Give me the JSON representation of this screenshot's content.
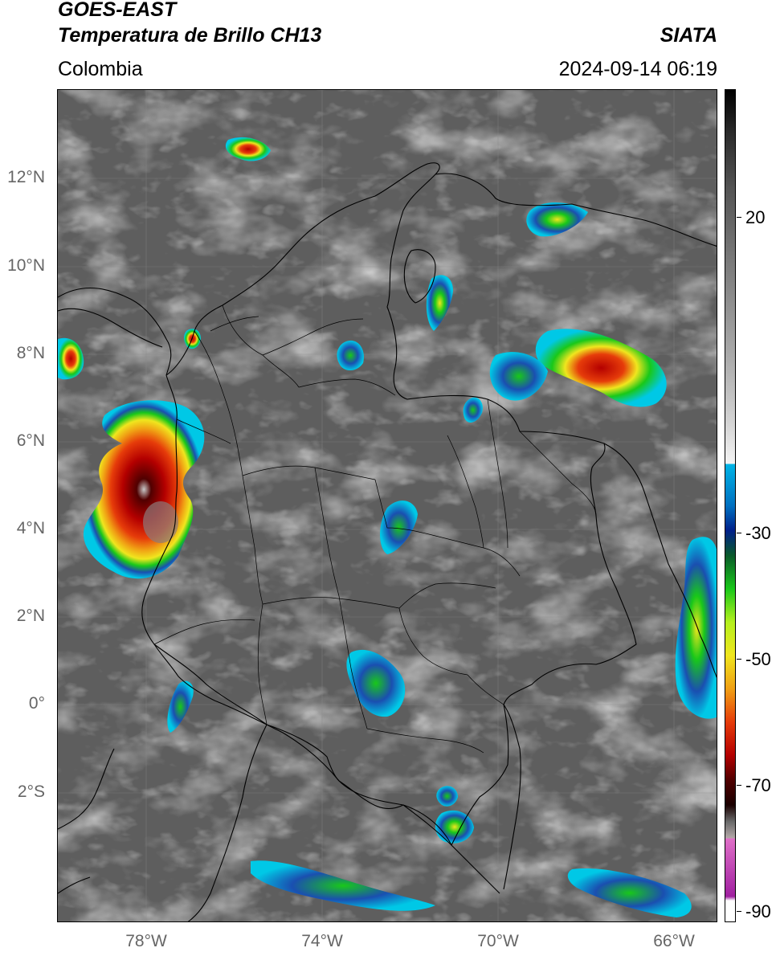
{
  "header": {
    "satellite": "GOES-EAST",
    "product": "Temperatura de Brillo CH13",
    "brand": "SIATA",
    "region": "Colombia",
    "datetime": "2024-09-14 06:19"
  },
  "map": {
    "extent": {
      "lon_min": -80.0,
      "lon_max": -65.0,
      "lat_min": -4.5,
      "lat_max": 14.5
    },
    "lat_labels": [
      "12°N",
      "10°N",
      "8°N",
      "6°N",
      "4°N",
      "2°N",
      "0°",
      "2°S"
    ],
    "lon_labels": [
      "78°W",
      "74°W",
      "70°W",
      "66°W"
    ],
    "background": "#5e5e5e",
    "storm_colors": {
      "cyan": "#00c8e6",
      "blue": "#1a4fb0",
      "green": "#19c819",
      "yellow": "#f0e61e",
      "orange": "#f08c14",
      "red": "#d21414",
      "darkred": "#500000"
    }
  },
  "colorbar": {
    "labels": [
      "20",
      "-30",
      "-50",
      "-70",
      "-90"
    ],
    "stops": [
      "#000000",
      "#2a2a2a",
      "#555555",
      "#808080",
      "#aaaaaa",
      "#d4d4d4",
      "#f4f4f4",
      "#00b4e6",
      "#0070c0",
      "#00208a",
      "#0a5a2a",
      "#19c819",
      "#b4f01e",
      "#f0e61e",
      "#f0a014",
      "#e63c0a",
      "#b40000",
      "#500000",
      "#1a0000",
      "#6a6a6a",
      "#b4a8a8",
      "#e070c8",
      "#a020a0",
      "#ffffff"
    ]
  }
}
